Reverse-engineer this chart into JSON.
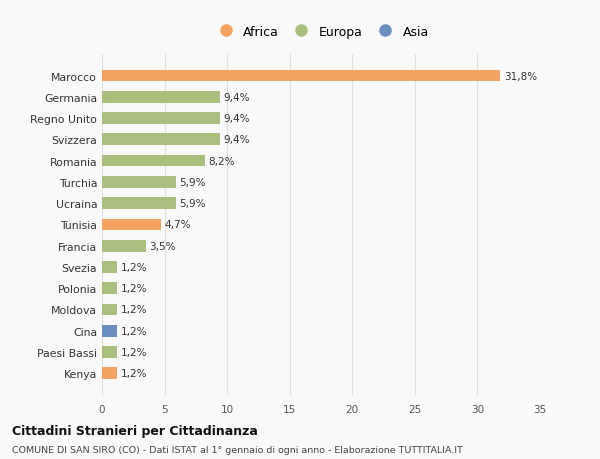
{
  "countries": [
    "Marocco",
    "Germania",
    "Regno Unito",
    "Svizzera",
    "Romania",
    "Turchia",
    "Ucraina",
    "Tunisia",
    "Francia",
    "Svezia",
    "Polonia",
    "Moldova",
    "Cina",
    "Paesi Bassi",
    "Kenya"
  ],
  "values": [
    31.8,
    9.4,
    9.4,
    9.4,
    8.2,
    5.9,
    5.9,
    4.7,
    3.5,
    1.2,
    1.2,
    1.2,
    1.2,
    1.2,
    1.2
  ],
  "labels": [
    "31,8%",
    "9,4%",
    "9,4%",
    "9,4%",
    "8,2%",
    "5,9%",
    "5,9%",
    "4,7%",
    "3,5%",
    "1,2%",
    "1,2%",
    "1,2%",
    "1,2%",
    "1,2%",
    "1,2%"
  ],
  "continents": [
    "Africa",
    "Europa",
    "Europa",
    "Europa",
    "Europa",
    "Europa",
    "Europa",
    "Africa",
    "Europa",
    "Europa",
    "Europa",
    "Europa",
    "Asia",
    "Europa",
    "Africa"
  ],
  "colors": {
    "Africa": "#F4A460",
    "Europa": "#AABF7E",
    "Asia": "#6B8EC0"
  },
  "xlim": [
    0,
    35
  ],
  "xticks": [
    0,
    5,
    10,
    15,
    20,
    25,
    30,
    35
  ],
  "title": "Cittadini Stranieri per Cittadinanza",
  "subtitle": "COMUNE DI SAN SIRO (CO) - Dati ISTAT al 1° gennaio di ogni anno - Elaborazione TUTTITALIA.IT",
  "bg_color": "#f9f9f9",
  "grid_color": "#e0e0e0",
  "bar_height": 0.55
}
